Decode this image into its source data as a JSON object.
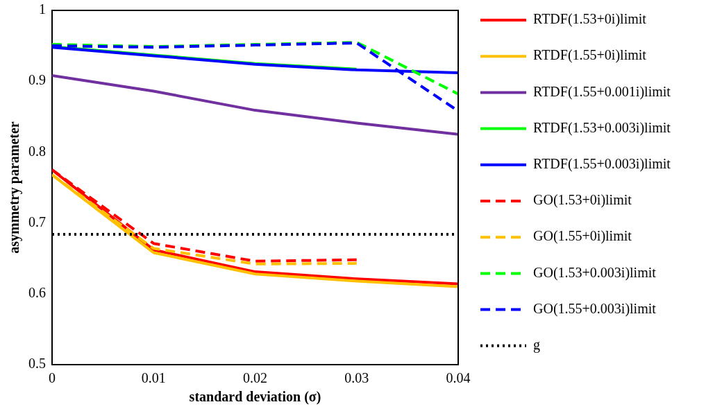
{
  "chart_data": {
    "type": "line",
    "xlabel": "standard deviation (σ)",
    "ylabel": "asymmetry parameter",
    "x": [
      0,
      0.01,
      0.02,
      0.03,
      0.04
    ],
    "xlim": [
      0,
      0.04
    ],
    "xticks": [
      0,
      0.01,
      0.02,
      0.03,
      0.04
    ],
    "ylim": [
      0.5,
      1
    ],
    "yticks": [
      0.5,
      0.6,
      0.7,
      0.8,
      0.9,
      1
    ],
    "grid": false,
    "legend": "right",
    "marker": "none",
    "series": [
      {
        "name": "RTDF(1.53+0i)limit",
        "color": "#ff0000",
        "line_style": "solid",
        "values": [
          0.775,
          0.662,
          0.631,
          0.621,
          0.614
        ]
      },
      {
        "name": "RTDF(1.55+0i)limit",
        "color": "#ffc000",
        "line_style": "solid",
        "values": [
          0.768,
          0.658,
          0.628,
          0.618,
          0.61
        ]
      },
      {
        "name": "RTDF(1.55+0.001i)limit",
        "color": "#7030a0",
        "line_style": "solid",
        "values": [
          0.908,
          0.886,
          0.859,
          0.841,
          0.825
        ]
      },
      {
        "name": "RTDF(1.53+0.003i)limit",
        "color": "#00ff00",
        "line_style": "solid",
        "values": [
          0.949,
          0.937,
          0.925,
          0.917,
          null
        ]
      },
      {
        "name": "RTDF(1.55+0.003i)limit",
        "color": "#0000ff",
        "line_style": "solid",
        "values": [
          0.948,
          0.936,
          0.924,
          0.916,
          0.912
        ]
      },
      {
        "name": "GO(1.53+0i)limit",
        "color": "#ff0000",
        "line_style": "dashed",
        "values": [
          0.775,
          0.671,
          0.646,
          0.648,
          null
        ]
      },
      {
        "name": "GO(1.55+0i)limit",
        "color": "#ffc000",
        "line_style": "dashed",
        "values": [
          0.768,
          0.664,
          0.642,
          0.643,
          null
        ]
      },
      {
        "name": "GO(1.53+0.003i)limit",
        "color": "#00ff00",
        "line_style": "dashed",
        "values": [
          0.952,
          0.949,
          0.952,
          0.955,
          0.882
        ]
      },
      {
        "name": "GO(1.55+0.003i)limit",
        "color": "#0000ff",
        "line_style": "dashed",
        "values": [
          0.95,
          0.948,
          0.951,
          0.954,
          0.858
        ]
      },
      {
        "name": "g",
        "color": "#000000",
        "line_style": "dotted",
        "values": [
          0.684,
          0.684,
          0.684,
          0.684,
          0.684
        ]
      }
    ]
  }
}
